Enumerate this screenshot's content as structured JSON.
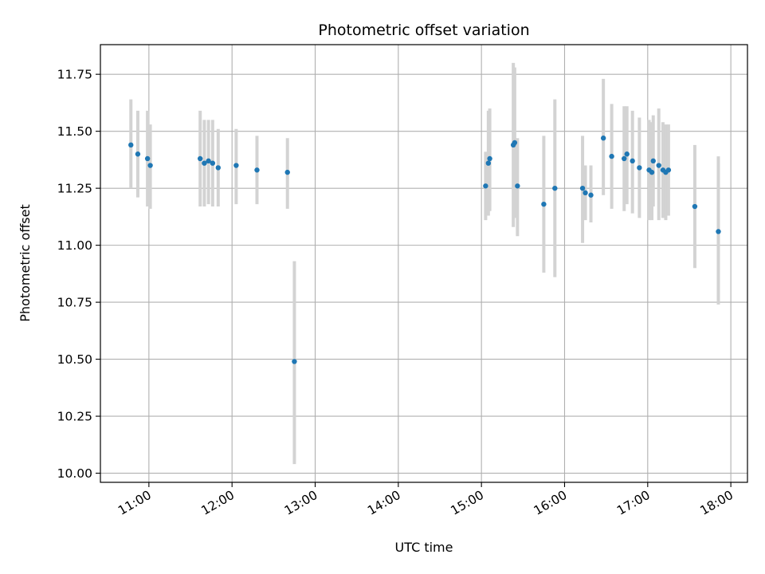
{
  "chart_data": {
    "type": "scatter",
    "title": "Photometric offset variation",
    "xlabel": "UTC time",
    "ylabel": "Photometric offset",
    "x_ticks": [
      "11:00",
      "12:00",
      "13:00",
      "14:00",
      "15:00",
      "16:00",
      "17:00",
      "18:00"
    ],
    "y_ticks": [
      "10.00",
      "10.25",
      "10.50",
      "10.75",
      "11.00",
      "11.25",
      "11.50",
      "11.75"
    ],
    "xlim": [
      "10:25",
      "18:12"
    ],
    "ylim": [
      9.96,
      11.88
    ],
    "grid": true,
    "point_color": "#1f77b4",
    "errorbar_color": "#d3d3d3",
    "points": [
      {
        "x": "10:47",
        "y": 11.44,
        "lo": 11.25,
        "hi": 11.64
      },
      {
        "x": "10:52",
        "y": 11.4,
        "lo": 11.21,
        "hi": 11.59
      },
      {
        "x": "10:59",
        "y": 11.38,
        "lo": 11.17,
        "hi": 11.59
      },
      {
        "x": "11:01",
        "y": 11.35,
        "lo": 11.16,
        "hi": 11.53
      },
      {
        "x": "11:37",
        "y": 11.38,
        "lo": 11.17,
        "hi": 11.59
      },
      {
        "x": "11:40",
        "y": 11.36,
        "lo": 11.17,
        "hi": 11.55
      },
      {
        "x": "11:43",
        "y": 11.37,
        "lo": 11.18,
        "hi": 11.55
      },
      {
        "x": "11:46",
        "y": 11.36,
        "lo": 11.17,
        "hi": 11.55
      },
      {
        "x": "11:50",
        "y": 11.34,
        "lo": 11.17,
        "hi": 11.51
      },
      {
        "x": "12:03",
        "y": 11.35,
        "lo": 11.18,
        "hi": 11.51
      },
      {
        "x": "12:18",
        "y": 11.33,
        "lo": 11.18,
        "hi": 11.48
      },
      {
        "x": "12:40",
        "y": 11.32,
        "lo": 11.16,
        "hi": 11.47
      },
      {
        "x": "12:45",
        "y": 10.49,
        "lo": 10.04,
        "hi": 10.93
      },
      {
        "x": "15:03",
        "y": 11.26,
        "lo": 11.11,
        "hi": 11.41
      },
      {
        "x": "15:05",
        "y": 11.36,
        "lo": 11.13,
        "hi": 11.59
      },
      {
        "x": "15:06",
        "y": 11.38,
        "lo": 11.15,
        "hi": 11.6
      },
      {
        "x": "15:23",
        "y": 11.44,
        "lo": 11.08,
        "hi": 11.8
      },
      {
        "x": "15:24",
        "y": 11.45,
        "lo": 11.12,
        "hi": 11.78
      },
      {
        "x": "15:26",
        "y": 11.26,
        "lo": 11.04,
        "hi": 11.47
      },
      {
        "x": "15:45",
        "y": 11.18,
        "lo": 10.88,
        "hi": 11.48
      },
      {
        "x": "15:53",
        "y": 11.25,
        "lo": 10.86,
        "hi": 11.64
      },
      {
        "x": "16:13",
        "y": 11.25,
        "lo": 11.01,
        "hi": 11.48
      },
      {
        "x": "16:15",
        "y": 11.23,
        "lo": 11.11,
        "hi": 11.35
      },
      {
        "x": "16:19",
        "y": 11.22,
        "lo": 11.1,
        "hi": 11.35
      },
      {
        "x": "16:28",
        "y": 11.47,
        "lo": 11.22,
        "hi": 11.73
      },
      {
        "x": "16:34",
        "y": 11.39,
        "lo": 11.16,
        "hi": 11.62
      },
      {
        "x": "16:43",
        "y": 11.38,
        "lo": 11.15,
        "hi": 11.61
      },
      {
        "x": "16:45",
        "y": 11.4,
        "lo": 11.18,
        "hi": 11.61
      },
      {
        "x": "16:49",
        "y": 11.37,
        "lo": 11.14,
        "hi": 11.59
      },
      {
        "x": "16:54",
        "y": 11.34,
        "lo": 11.12,
        "hi": 11.56
      },
      {
        "x": "17:01",
        "y": 11.33,
        "lo": 11.11,
        "hi": 11.55
      },
      {
        "x": "17:03",
        "y": 11.32,
        "lo": 11.11,
        "hi": 11.54
      },
      {
        "x": "17:04",
        "y": 11.37,
        "lo": 11.17,
        "hi": 11.57
      },
      {
        "x": "17:08",
        "y": 11.35,
        "lo": 11.11,
        "hi": 11.6
      },
      {
        "x": "17:11",
        "y": 11.33,
        "lo": 11.12,
        "hi": 11.54
      },
      {
        "x": "17:13",
        "y": 11.32,
        "lo": 11.11,
        "hi": 11.53
      },
      {
        "x": "17:15",
        "y": 11.33,
        "lo": 11.13,
        "hi": 11.53
      },
      {
        "x": "17:34",
        "y": 11.17,
        "lo": 10.9,
        "hi": 11.44
      },
      {
        "x": "17:51",
        "y": 11.06,
        "lo": 10.74,
        "hi": 11.39
      }
    ]
  }
}
